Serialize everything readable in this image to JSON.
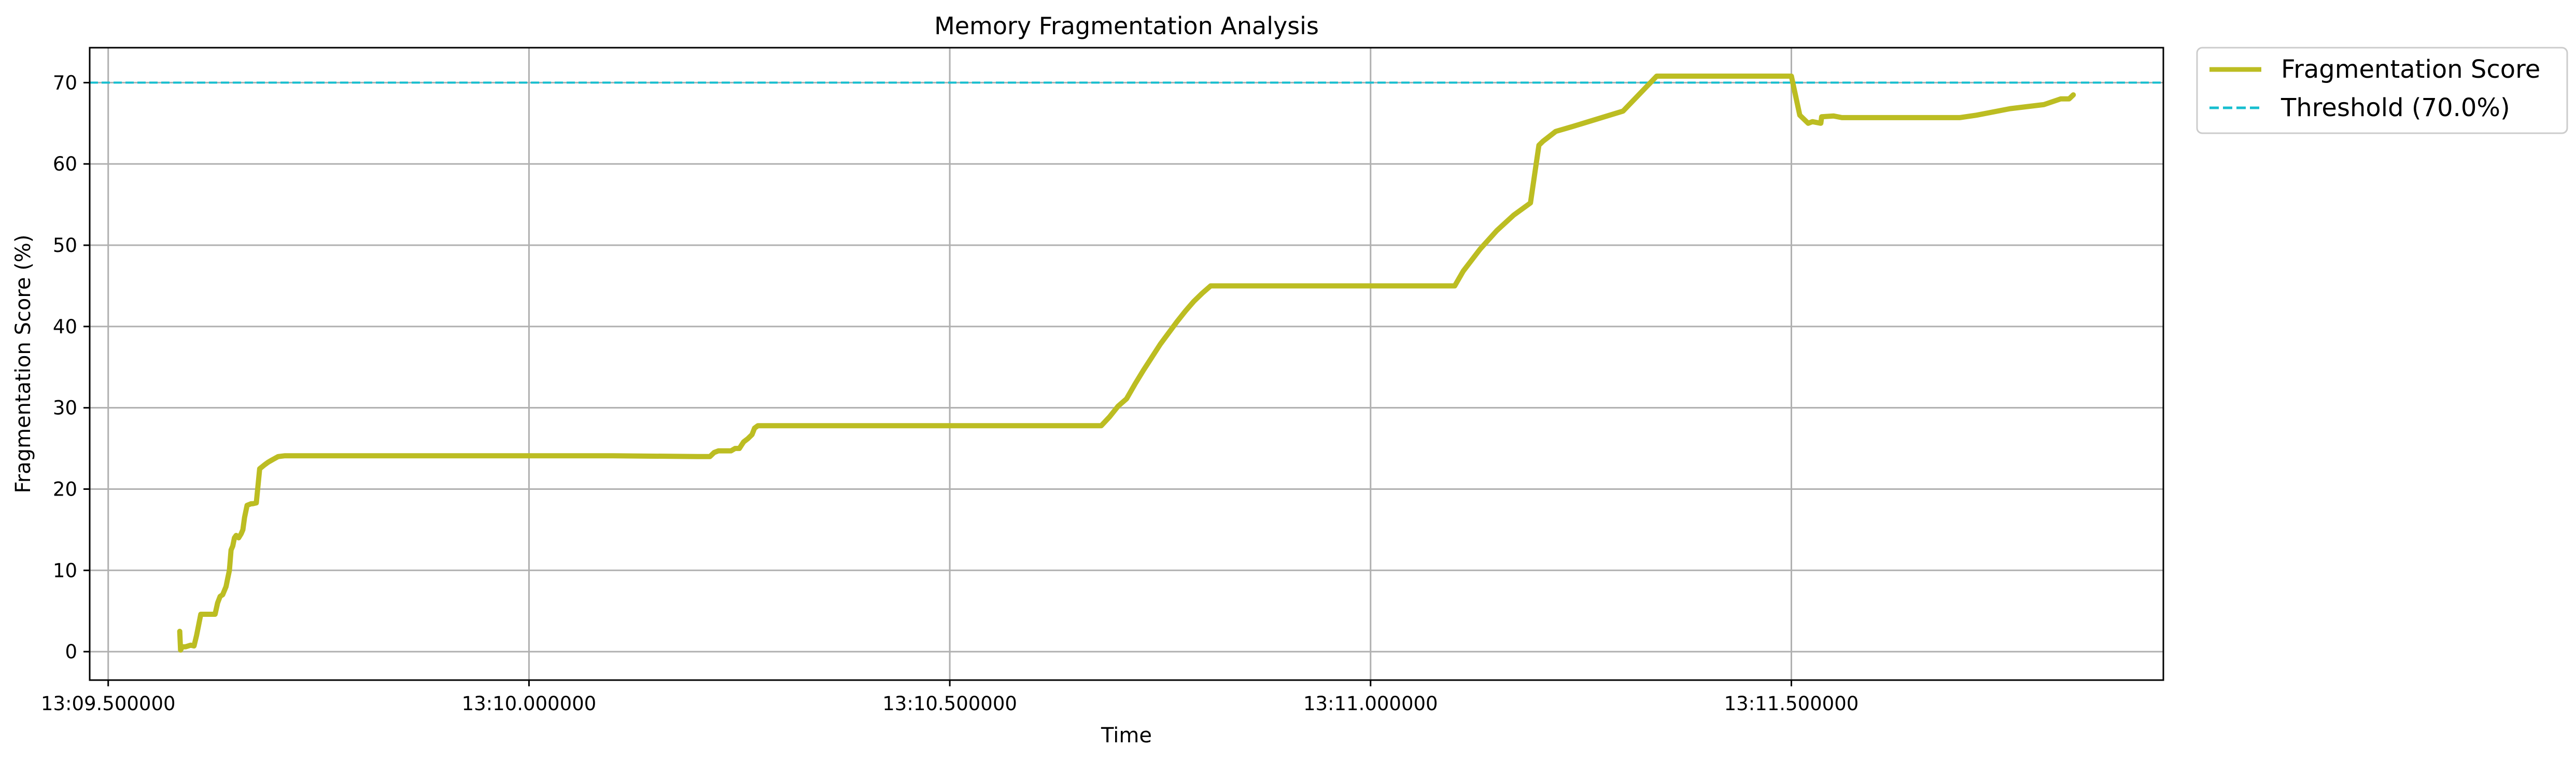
{
  "chart_data": {
    "type": "line",
    "title": "Memory Fragmentation Analysis",
    "xlabel": "Time",
    "ylabel": "Fragmentation Score (%)",
    "x_ticks": [
      "13:09.500000",
      "13:10.000000",
      "13:10.500000",
      "13:11.000000",
      "13:11.500000"
    ],
    "x_tick_values": [
      69.5,
      70.0,
      70.5,
      71.0,
      71.5
    ],
    "xlim": [
      69.478,
      71.942
    ],
    "ylim": [
      -3.5,
      74.3
    ],
    "y_ticks": [
      0,
      10,
      20,
      30,
      40,
      50,
      60,
      70
    ],
    "grid": true,
    "legend": "outside-top-right",
    "colors": {
      "series": "#bcbd22",
      "threshold": "#17becf",
      "grid": "#b0b0b0"
    },
    "threshold": {
      "name": "Threshold (70.0%)",
      "value": 70.0
    },
    "series": [
      {
        "name": "Fragmentation Score",
        "x": [
          69.585,
          69.586,
          69.588,
          69.592,
          69.598,
          69.602,
          69.605,
          69.61,
          69.615,
          69.62,
          69.627,
          69.63,
          69.633,
          69.636,
          69.64,
          69.642,
          69.644,
          69.646,
          69.648,
          69.65,
          69.652,
          69.655,
          69.658,
          69.66,
          69.662,
          69.665,
          69.67,
          69.672,
          69.676,
          69.68,
          69.686,
          69.69,
          69.695,
          69.702,
          69.71,
          69.72,
          69.73,
          69.8,
          69.9,
          70.0,
          70.1,
          70.2,
          70.215,
          70.22,
          70.225,
          70.228,
          70.24,
          70.245,
          70.25,
          70.255,
          70.26,
          70.265,
          70.268,
          70.272,
          70.28,
          70.35,
          70.5,
          70.6,
          70.68,
          70.69,
          70.7,
          70.71,
          70.72,
          70.73,
          70.74,
          70.75,
          70.76,
          70.77,
          70.78,
          70.79,
          70.8,
          70.81,
          70.82,
          70.83,
          70.84,
          70.85,
          70.9,
          71.0,
          71.05,
          71.1,
          71.11,
          71.13,
          71.15,
          71.17,
          71.19,
          71.2,
          71.205,
          71.21,
          71.22,
          71.24,
          71.3,
          71.34,
          71.35,
          71.4,
          71.45,
          71.5,
          71.51,
          71.52,
          71.525,
          71.535,
          71.536,
          71.55,
          71.56,
          71.6,
          71.7,
          71.72,
          71.76,
          71.8,
          71.82,
          71.83,
          71.835
        ],
        "y": [
          2.5,
          0.2,
          0.6,
          0.6,
          0.8,
          0.7,
          2.0,
          4.6,
          4.6,
          4.6,
          4.6,
          6.0,
          6.8,
          7.0,
          8.0,
          9.0,
          10.0,
          12.5,
          13.0,
          14.0,
          14.3,
          14.0,
          14.5,
          15.0,
          16.5,
          18.0,
          18.2,
          18.2,
          18.3,
          22.5,
          23.0,
          23.3,
          23.6,
          24.0,
          24.1,
          24.1,
          24.1,
          24.1,
          24.1,
          24.1,
          24.1,
          24.0,
          24.0,
          24.5,
          24.7,
          24.7,
          24.7,
          25.0,
          25.0,
          25.8,
          26.2,
          26.7,
          27.5,
          27.8,
          27.8,
          27.8,
          27.8,
          27.8,
          27.8,
          28.9,
          30.2,
          31.1,
          32.9,
          34.6,
          36.2,
          37.8,
          39.2,
          40.6,
          41.9,
          43.1,
          44.1,
          45.0,
          45.0,
          45.0,
          45.0,
          45.0,
          45.0,
          45.0,
          45.0,
          45.0,
          46.8,
          49.5,
          51.8,
          53.7,
          55.2,
          62.3,
          62.8,
          63.2,
          64.0,
          64.6,
          66.5,
          70.8,
          70.8,
          70.8,
          70.8,
          70.8,
          66.0,
          65.0,
          65.2,
          65.0,
          65.8,
          65.9,
          65.7,
          65.7,
          65.7,
          66.0,
          66.8,
          67.3,
          68.0,
          68.0,
          68.5
        ]
      }
    ]
  }
}
